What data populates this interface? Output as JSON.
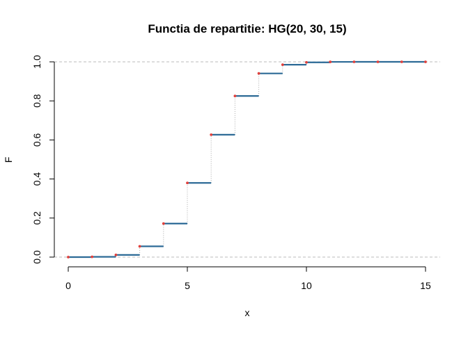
{
  "chart_data": {
    "type": "line",
    "subtype": "step",
    "title": "Functia de repartitie: HG(20, 30, 15)",
    "xlabel": "x",
    "ylabel": "F",
    "xlim": [
      0,
      15
    ],
    "ylim": [
      0,
      1
    ],
    "x_ticks": [
      "0",
      "5",
      "10",
      "15"
    ],
    "y_ticks": [
      "0.0",
      "0.2",
      "0.4",
      "0.6",
      "0.8",
      "1.0"
    ],
    "x": [
      0,
      1,
      2,
      3,
      4,
      5,
      6,
      7,
      8,
      9,
      10,
      11,
      12,
      13,
      14,
      15
    ],
    "series": [
      {
        "values": [
          0.0001,
          0.0013,
          0.0112,
          0.0551,
          0.1717,
          0.3799,
          0.6267,
          0.8253,
          0.9407,
          0.9852,
          0.9974,
          0.9997,
          1.0,
          1.0,
          1.0,
          1.0
        ]
      }
    ],
    "reference_lines_y": [
      0,
      1
    ],
    "colors": {
      "step": "#2c6a96",
      "point": "#e0403c",
      "connector": "#aaaaaa",
      "reference": "#bbbbbb",
      "axis": "#000000"
    },
    "grid": false,
    "legend": "none"
  }
}
